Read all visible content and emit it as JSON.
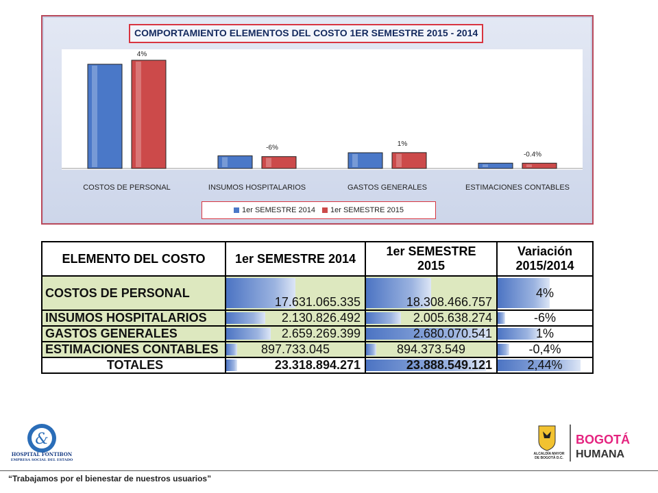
{
  "chart": {
    "title": "COMPORTAMIENTO ELEMENTOS DEL COSTO 1ER SEMESTRE 2015 - 2014",
    "legend": [
      "1er SEMESTRE 2014",
      "1er SEMESTRE 2015"
    ],
    "colors": {
      "s2014": "#4a78c8",
      "s2015": "#cc4a4a"
    }
  },
  "chart_data": {
    "type": "bar",
    "title": "COMPORTAMIENTO ELEMENTOS DEL COSTO 1ER SEMESTRE 2015 - 2014",
    "categories": [
      "COSTOS DE PERSONAL",
      "INSUMOS HOSPITALARIOS",
      "GASTOS GENERALES",
      "ESTIMACIONES CONTABLES"
    ],
    "series": [
      {
        "name": "1er SEMESTRE 2014",
        "values": [
          17631065335,
          2130826492,
          2659269399,
          897733045
        ]
      },
      {
        "name": "1er SEMESTRE 2015",
        "values": [
          18308466757,
          2005638274,
          2680070541,
          894373549
        ]
      }
    ],
    "data_labels": [
      "4%",
      "-6%",
      "1%",
      "-0.4%"
    ],
    "ylim": [
      0,
      19000000000
    ],
    "legend_position": "bottom"
  },
  "table": {
    "headers": [
      "ELEMENTO DEL COSTO",
      "1er SEMESTRE 2014",
      "1er SEMESTRE 2015",
      "Variación 2015/2014"
    ],
    "rows": [
      {
        "label": "COSTOS DE PERSONAL",
        "v2014": "17.631.065.335",
        "v2015": "18.308.466.757",
        "variation": "4%"
      },
      {
        "label": "INSUMOS HOSPITALARIOS",
        "v2014": "2.130.826.492",
        "v2015": "2.005.638.274",
        "variation": "-6%"
      },
      {
        "label": "GASTOS GENERALES",
        "v2014": "2.659.269.399",
        "v2015": "2.680.070.541",
        "variation": "1%"
      },
      {
        "label": "ESTIMACIONES CONTABLES",
        "v2014": "897.733.045",
        "v2015": "894.373.549",
        "variation": "-0,4%"
      }
    ],
    "total": {
      "label": "TOTALES",
      "v2014": "23.318.894.271",
      "v2015": "23.888.549.121",
      "variation": "2,44%"
    },
    "databar_levels": {
      "v2014": [
        0.5,
        0.28,
        0.32,
        0.08,
        0.08
      ],
      "v2015": [
        0.5,
        0.27,
        0.95,
        0.08,
        0.92
      ],
      "variation": [
        0.55,
        0.08,
        0.45,
        0.12,
        0.88
      ]
    }
  },
  "logos": {
    "fontibon": {
      "name": "HOSPITAL FONTIBON",
      "subtitle": "EMPRESA SOCIAL DEL ESTADO"
    },
    "alcaldia": "ALCALDÍA MAYOR DE BOGOTÁ D.C.",
    "bogota": {
      "line1": "BOGOTÁ",
      "line2": "HUMANA"
    }
  },
  "footer": {
    "text": "“Trabajamos por el bienestar de nuestros usuarios”"
  }
}
